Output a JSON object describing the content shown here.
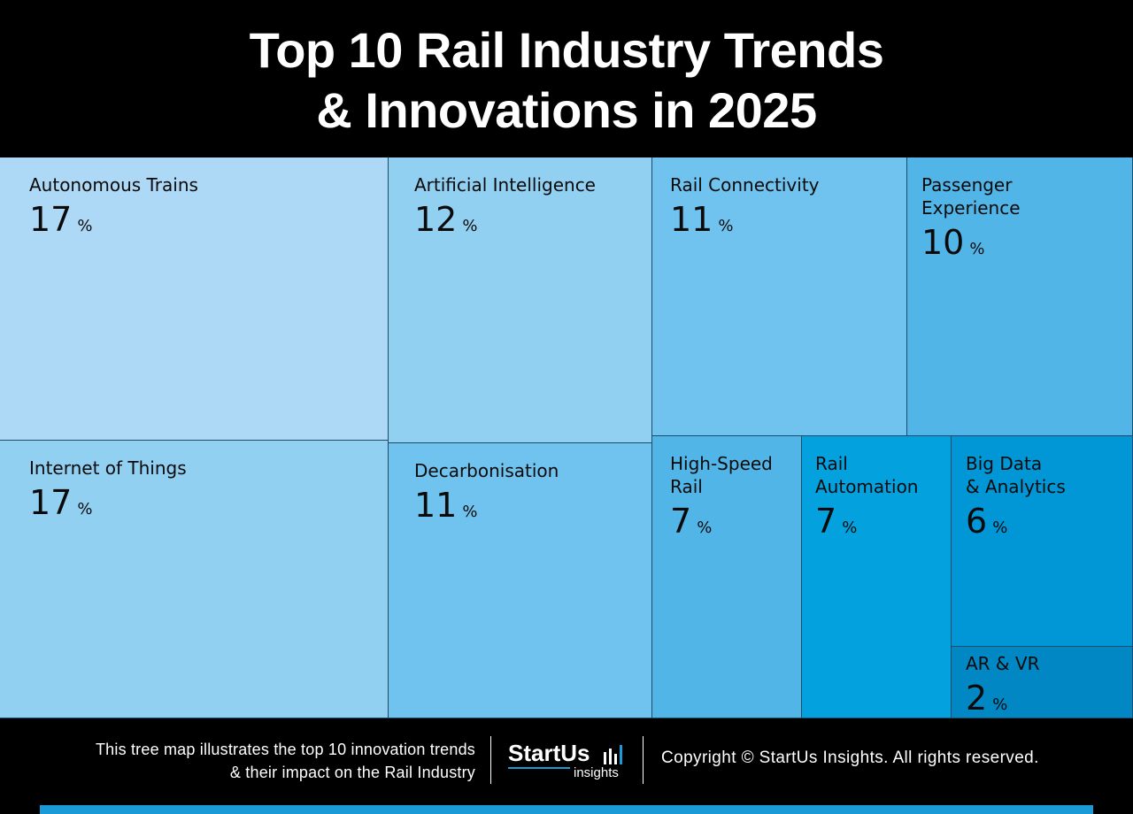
{
  "header": {
    "title_line1": "Top 10 Rail Industry Trends",
    "title_line2": "& Innovations in 2025"
  },
  "chart_data": {
    "type": "treemap",
    "title": "Top 10 Rail Industry Trends & Innovations in 2025",
    "unit": "%",
    "items": [
      {
        "name": "Autonomous Trains",
        "value": 17,
        "color": "#aed9f6"
      },
      {
        "name": "Internet of Things",
        "value": 17,
        "color": "#92d0f2"
      },
      {
        "name": "Artificial Intelligence",
        "value": 12,
        "color": "#92d0f2"
      },
      {
        "name": "Decarbonisation",
        "value": 11,
        "color": "#6fc3ee"
      },
      {
        "name": "Rail Connectivity",
        "value": 11,
        "color": "#6fc3ee"
      },
      {
        "name": "Passenger\nExperience",
        "value": 10,
        "color": "#52b5e7"
      },
      {
        "name": "High-Speed\nRail",
        "value": 7,
        "color": "#52b5e7"
      },
      {
        "name": "Rail\nAutomation",
        "value": 7,
        "color": "#03a2df"
      },
      {
        "name": "Big Data\n& Analytics",
        "value": 6,
        "color": "#0196d5"
      },
      {
        "name": "AR & VR",
        "value": 2,
        "color": "#0188c4"
      }
    ]
  },
  "footer": {
    "desc_line1": "This tree map illustrates the top 10 innovation trends",
    "desc_line2": "& their impact on the Rail Industry",
    "logo_brand": "StartUs",
    "logo_sub": "insights",
    "copyright": "Copyright © StartUs Insights. All rights reserved.",
    "accent_color": "#1a9ad6"
  }
}
